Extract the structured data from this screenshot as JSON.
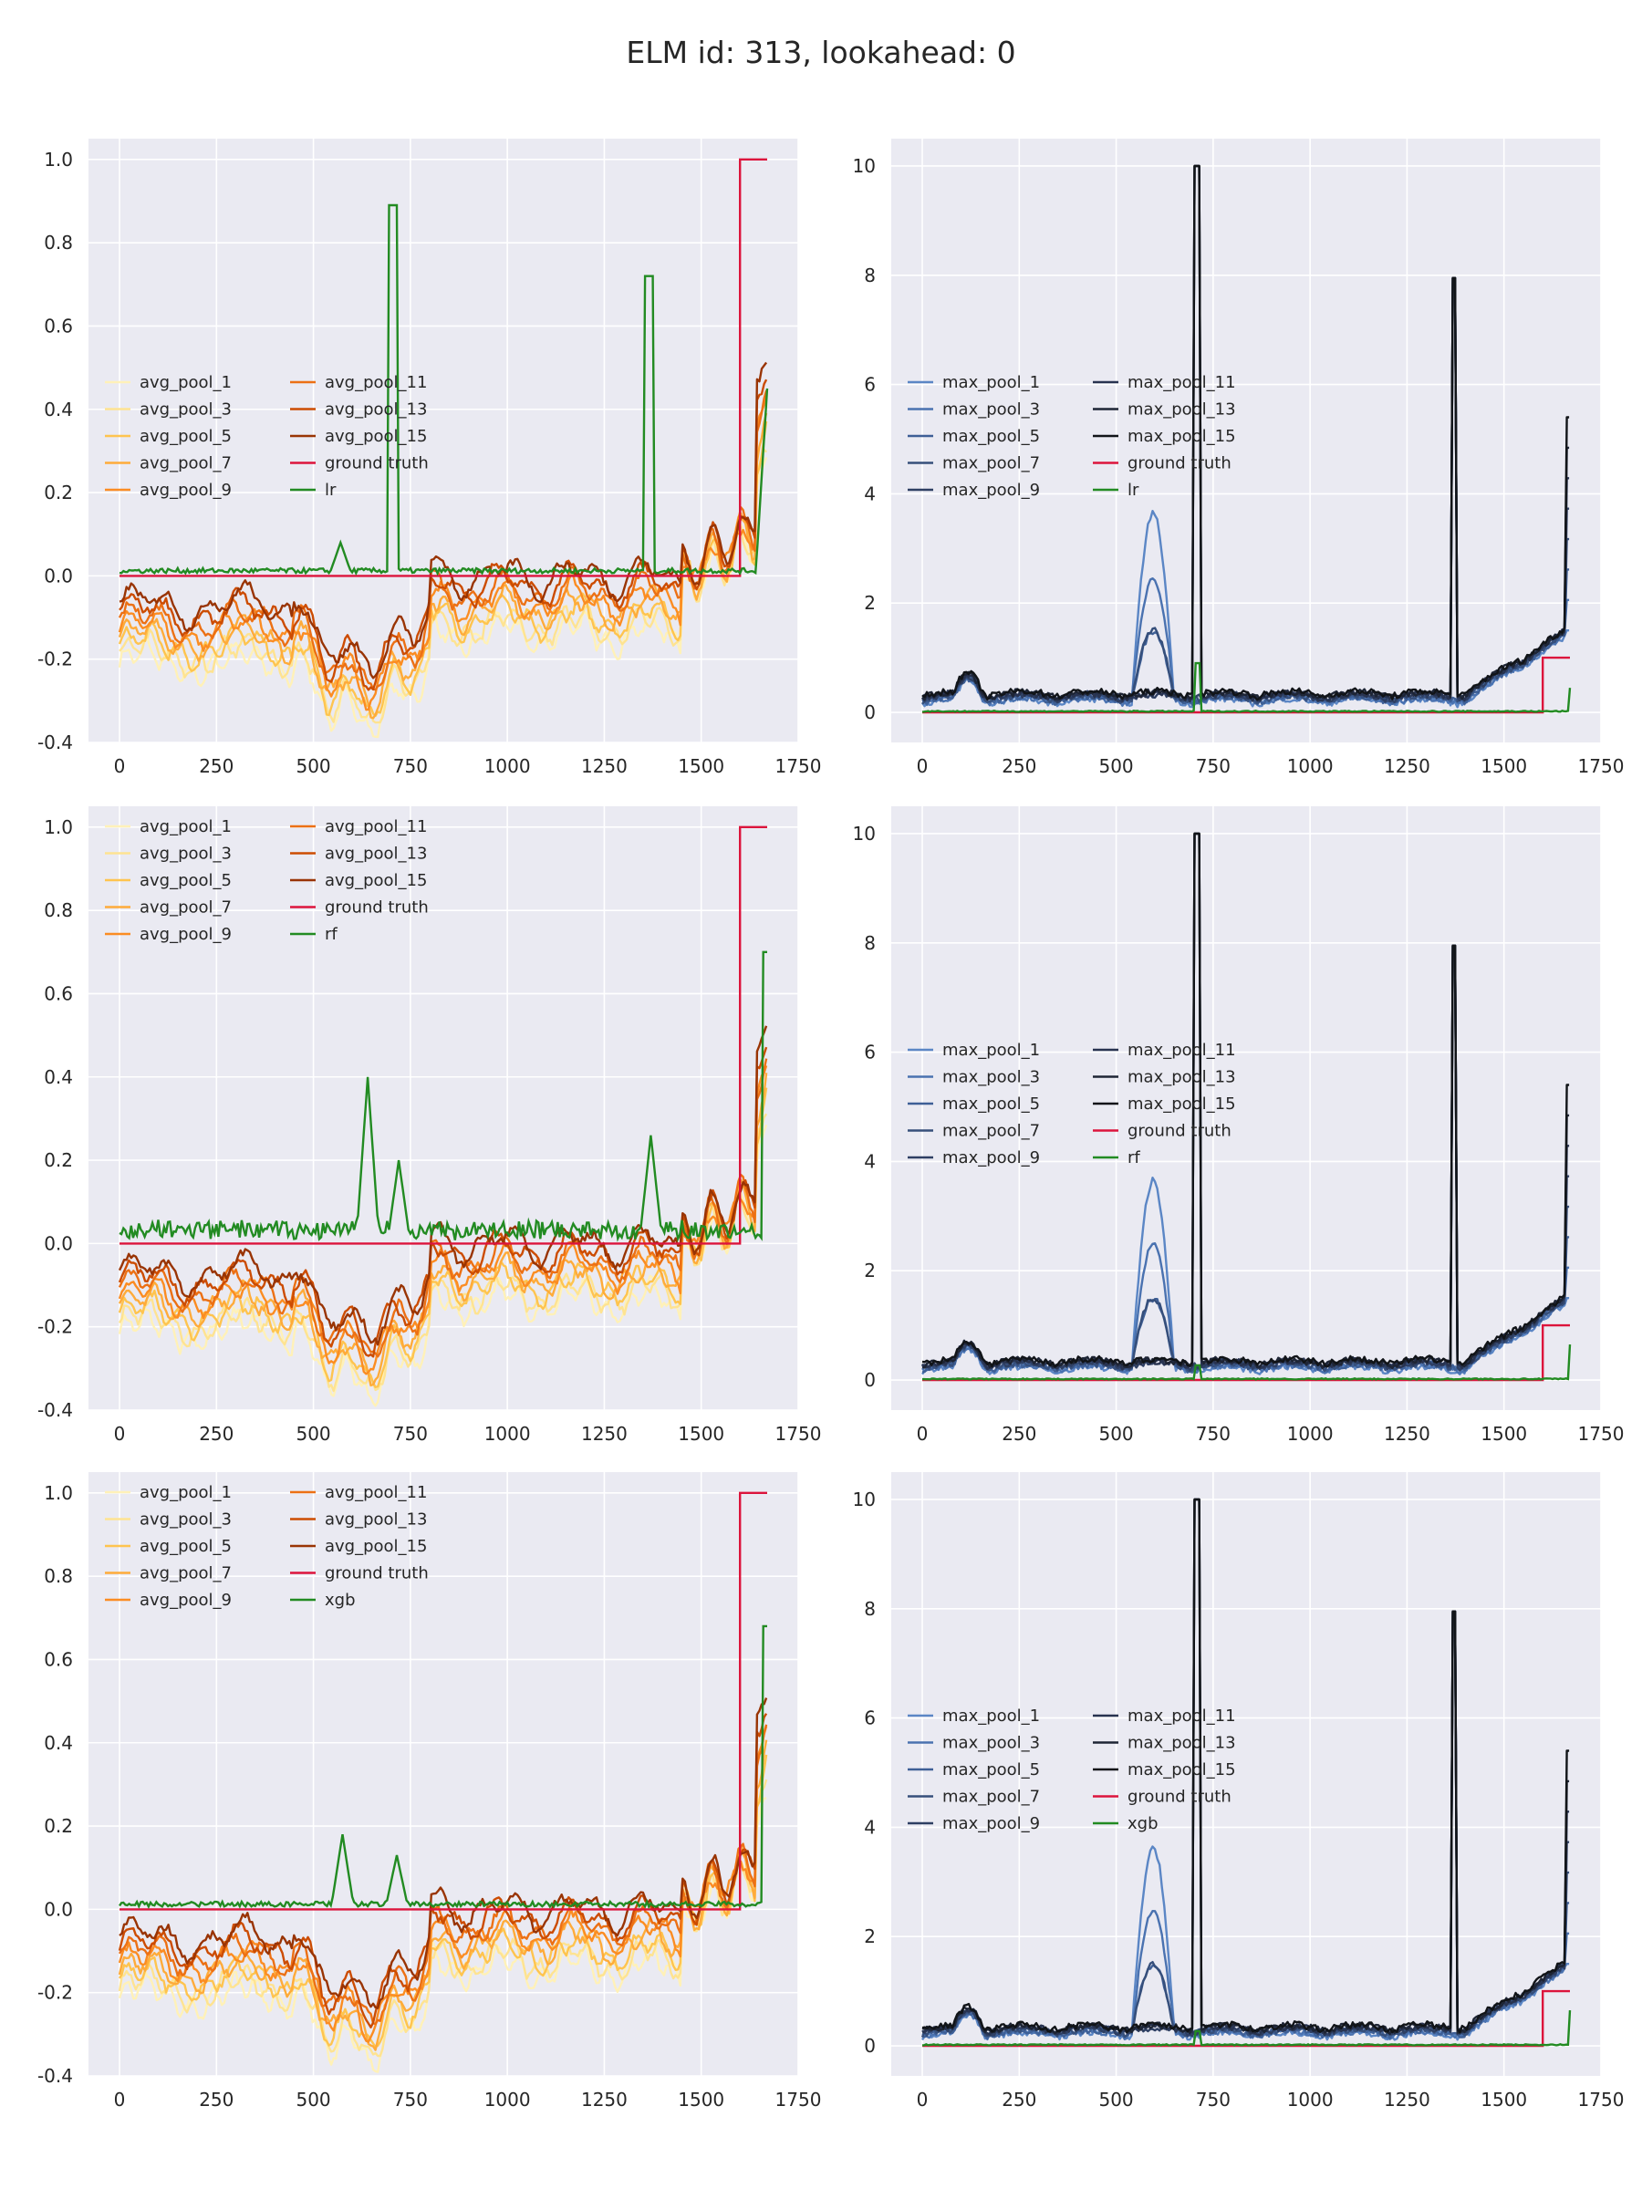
{
  "suptitle": "ELM id: 313, lookahead: 0",
  "colors": {
    "avg_pool": [
      "#fff1b8",
      "#fee391",
      "#fec44f",
      "#feab3a",
      "#fb8c22",
      "#ec7014",
      "#cc4c02",
      "#993404"
    ],
    "max_pool": [
      "#5b86c5",
      "#4a72b0",
      "#3e5f96",
      "#364f7b",
      "#2e3f63",
      "#283350",
      "#1e2535",
      "#111418"
    ],
    "ground_truth": "#dc143c",
    "model": "#228b22",
    "axes_bg": "#eaeaf2",
    "grid": "#ffffff"
  },
  "chart_data": [
    {
      "type": "line",
      "panel": "row1-left",
      "xlim": [
        -80,
        1750
      ],
      "ylim": [
        -0.4,
        1.05
      ],
      "xticks": [
        "0",
        "250",
        "500",
        "750",
        "1000",
        "1250",
        "1500",
        "1750"
      ],
      "yticks": [
        "-0.4",
        "-0.2",
        "0.0",
        "0.2",
        "0.4",
        "0.6",
        "0.8",
        "1.0"
      ],
      "legend": [
        "avg_pool_1",
        "avg_pool_3",
        "avg_pool_5",
        "avg_pool_7",
        "avg_pool_9",
        "avg_pool_11",
        "avg_pool_13",
        "avg_pool_15",
        "ground truth",
        "lr"
      ],
      "legend_loc": "center-left",
      "pool_family": "avg",
      "model": "lr",
      "peaks": [
        [
          570,
          0.08
        ],
        [
          705,
          0.89
        ],
        [
          1365,
          0.72
        ],
        [
          1670,
          0.45
        ]
      ],
      "ground_truth": {
        "step_x": 1600,
        "end_x": 1670,
        "low": 0.0,
        "high": 1.0
      }
    },
    {
      "type": "line",
      "panel": "row1-right",
      "xlim": [
        -80,
        1750
      ],
      "ylim": [
        -0.55,
        10.5
      ],
      "xticks": [
        "0",
        "250",
        "500",
        "750",
        "1000",
        "1250",
        "1500",
        "1750"
      ],
      "yticks": [
        "0",
        "2",
        "4",
        "6",
        "8",
        "10"
      ],
      "legend": [
        "max_pool_1",
        "max_pool_3",
        "max_pool_5",
        "max_pool_7",
        "max_pool_9",
        "max_pool_11",
        "max_pool_13",
        "max_pool_15",
        "ground truth",
        "lr"
      ],
      "legend_loc": "center-left",
      "pool_family": "max",
      "model": "lr",
      "peaks": [
        [
          600,
          3.55
        ],
        [
          710,
          10.0
        ],
        [
          1370,
          7.95
        ],
        [
          1670,
          3.9
        ]
      ],
      "ground_truth": {
        "step_x": 1600,
        "end_x": 1670,
        "low": 0.0,
        "high": 1.0
      }
    },
    {
      "type": "line",
      "panel": "row2-left",
      "xlim": [
        -80,
        1750
      ],
      "ylim": [
        -0.4,
        1.05
      ],
      "xticks": [
        "0",
        "250",
        "500",
        "750",
        "1000",
        "1250",
        "1500",
        "1750"
      ],
      "yticks": [
        "-0.4",
        "-0.2",
        "0.0",
        "0.2",
        "0.4",
        "0.6",
        "0.8",
        "1.0"
      ],
      "legend": [
        "avg_pool_1",
        "avg_pool_3",
        "avg_pool_5",
        "avg_pool_7",
        "avg_pool_9",
        "avg_pool_11",
        "avg_pool_13",
        "avg_pool_15",
        "ground truth",
        "rf"
      ],
      "legend_loc": "upper-left",
      "pool_family": "avg",
      "model": "rf",
      "peaks": [
        [
          640,
          0.4
        ],
        [
          720,
          0.2
        ],
        [
          1370,
          0.26
        ],
        [
          1670,
          0.7
        ]
      ],
      "ground_truth": {
        "step_x": 1600,
        "end_x": 1670,
        "low": 0.0,
        "high": 1.0
      }
    },
    {
      "type": "line",
      "panel": "row2-right",
      "xlim": [
        -80,
        1750
      ],
      "ylim": [
        -0.55,
        10.5
      ],
      "xticks": [
        "0",
        "250",
        "500",
        "750",
        "1000",
        "1250",
        "1500",
        "1750"
      ],
      "yticks": [
        "0",
        "2",
        "4",
        "6",
        "8",
        "10"
      ],
      "legend": [
        "max_pool_1",
        "max_pool_3",
        "max_pool_5",
        "max_pool_7",
        "max_pool_9",
        "max_pool_11",
        "max_pool_13",
        "max_pool_15",
        "ground truth",
        "rf"
      ],
      "legend_loc": "center-left",
      "pool_family": "max",
      "model": "rf",
      "peaks": [
        [
          600,
          3.55
        ],
        [
          710,
          10.0
        ],
        [
          1370,
          7.95
        ],
        [
          1670,
          3.9
        ]
      ],
      "ground_truth": {
        "step_x": 1600,
        "end_x": 1670,
        "low": 0.0,
        "high": 1.0
      }
    },
    {
      "type": "line",
      "panel": "row3-left",
      "xlim": [
        -80,
        1750
      ],
      "ylim": [
        -0.4,
        1.05
      ],
      "xticks": [
        "0",
        "250",
        "500",
        "750",
        "1000",
        "1250",
        "1500",
        "1750"
      ],
      "yticks": [
        "-0.4",
        "-0.2",
        "0.0",
        "0.2",
        "0.4",
        "0.6",
        "0.8",
        "1.0"
      ],
      "legend": [
        "avg_pool_1",
        "avg_pool_3",
        "avg_pool_5",
        "avg_pool_7",
        "avg_pool_9",
        "avg_pool_11",
        "avg_pool_13",
        "avg_pool_15",
        "ground truth",
        "xgb"
      ],
      "legend_loc": "upper-left",
      "pool_family": "avg",
      "model": "xgb",
      "peaks": [
        [
          575,
          0.18
        ],
        [
          715,
          0.13
        ],
        [
          1670,
          0.68
        ]
      ],
      "ground_truth": {
        "step_x": 1600,
        "end_x": 1670,
        "low": 0.0,
        "high": 1.0
      }
    },
    {
      "type": "line",
      "panel": "row3-right",
      "xlim": [
        -80,
        1750
      ],
      "ylim": [
        -0.55,
        10.5
      ],
      "xticks": [
        "0",
        "250",
        "500",
        "750",
        "1000",
        "1250",
        "1500",
        "1750"
      ],
      "yticks": [
        "0",
        "2",
        "4",
        "6",
        "8",
        "10"
      ],
      "legend": [
        "max_pool_1",
        "max_pool_3",
        "max_pool_5",
        "max_pool_7",
        "max_pool_9",
        "max_pool_11",
        "max_pool_13",
        "max_pool_15",
        "ground truth",
        "xgb"
      ],
      "legend_loc": "center-left",
      "pool_family": "max",
      "model": "xgb",
      "peaks": [
        [
          600,
          3.55
        ],
        [
          710,
          10.0
        ],
        [
          1370,
          7.95
        ],
        [
          1670,
          3.9
        ]
      ],
      "ground_truth": {
        "step_x": 1600,
        "end_x": 1670,
        "low": 0.0,
        "high": 1.0
      }
    }
  ]
}
